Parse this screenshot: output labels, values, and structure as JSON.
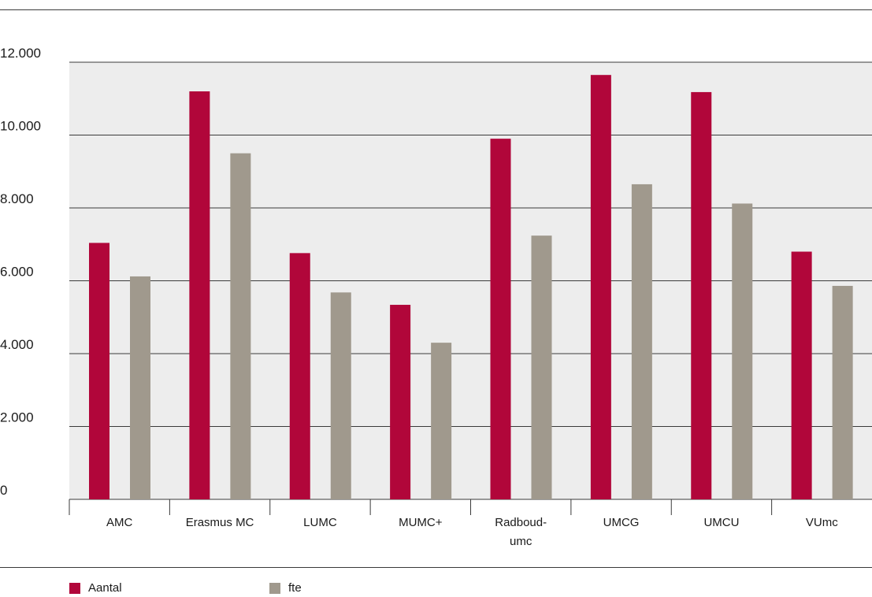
{
  "chart_data": {
    "type": "bar",
    "categories": [
      "AMC",
      "Erasmus MC",
      "LUMC",
      "MUMC+",
      "Radboud-umc",
      "UMCG",
      "UMCU",
      "VUmc"
    ],
    "category_lines": [
      [
        "AMC"
      ],
      [
        "Erasmus MC"
      ],
      [
        "LUMC"
      ],
      [
        "MUMC+"
      ],
      [
        "Radboud-",
        "umc"
      ],
      [
        "UMCG"
      ],
      [
        "UMCU"
      ],
      [
        "VUmc"
      ]
    ],
    "series": [
      {
        "name": "Aantal",
        "color": "#b1063a",
        "values": [
          7040,
          11200,
          6760,
          5340,
          9900,
          11650,
          11180,
          6800
        ]
      },
      {
        "name": "fte",
        "color": "#a0998d",
        "values": [
          6120,
          9500,
          5680,
          4300,
          7240,
          8650,
          8120,
          5860
        ]
      }
    ],
    "ylim": [
      0,
      12000
    ],
    "yticks": [
      0,
      2000,
      4000,
      6000,
      8000,
      10000,
      12000
    ],
    "ytick_labels": [
      "0",
      "2.000",
      "4.000",
      "6.000",
      "8.000",
      "10.000",
      "12.000"
    ],
    "grid": true,
    "plot_background": "#ededed",
    "legend_position": "bottom-left"
  }
}
